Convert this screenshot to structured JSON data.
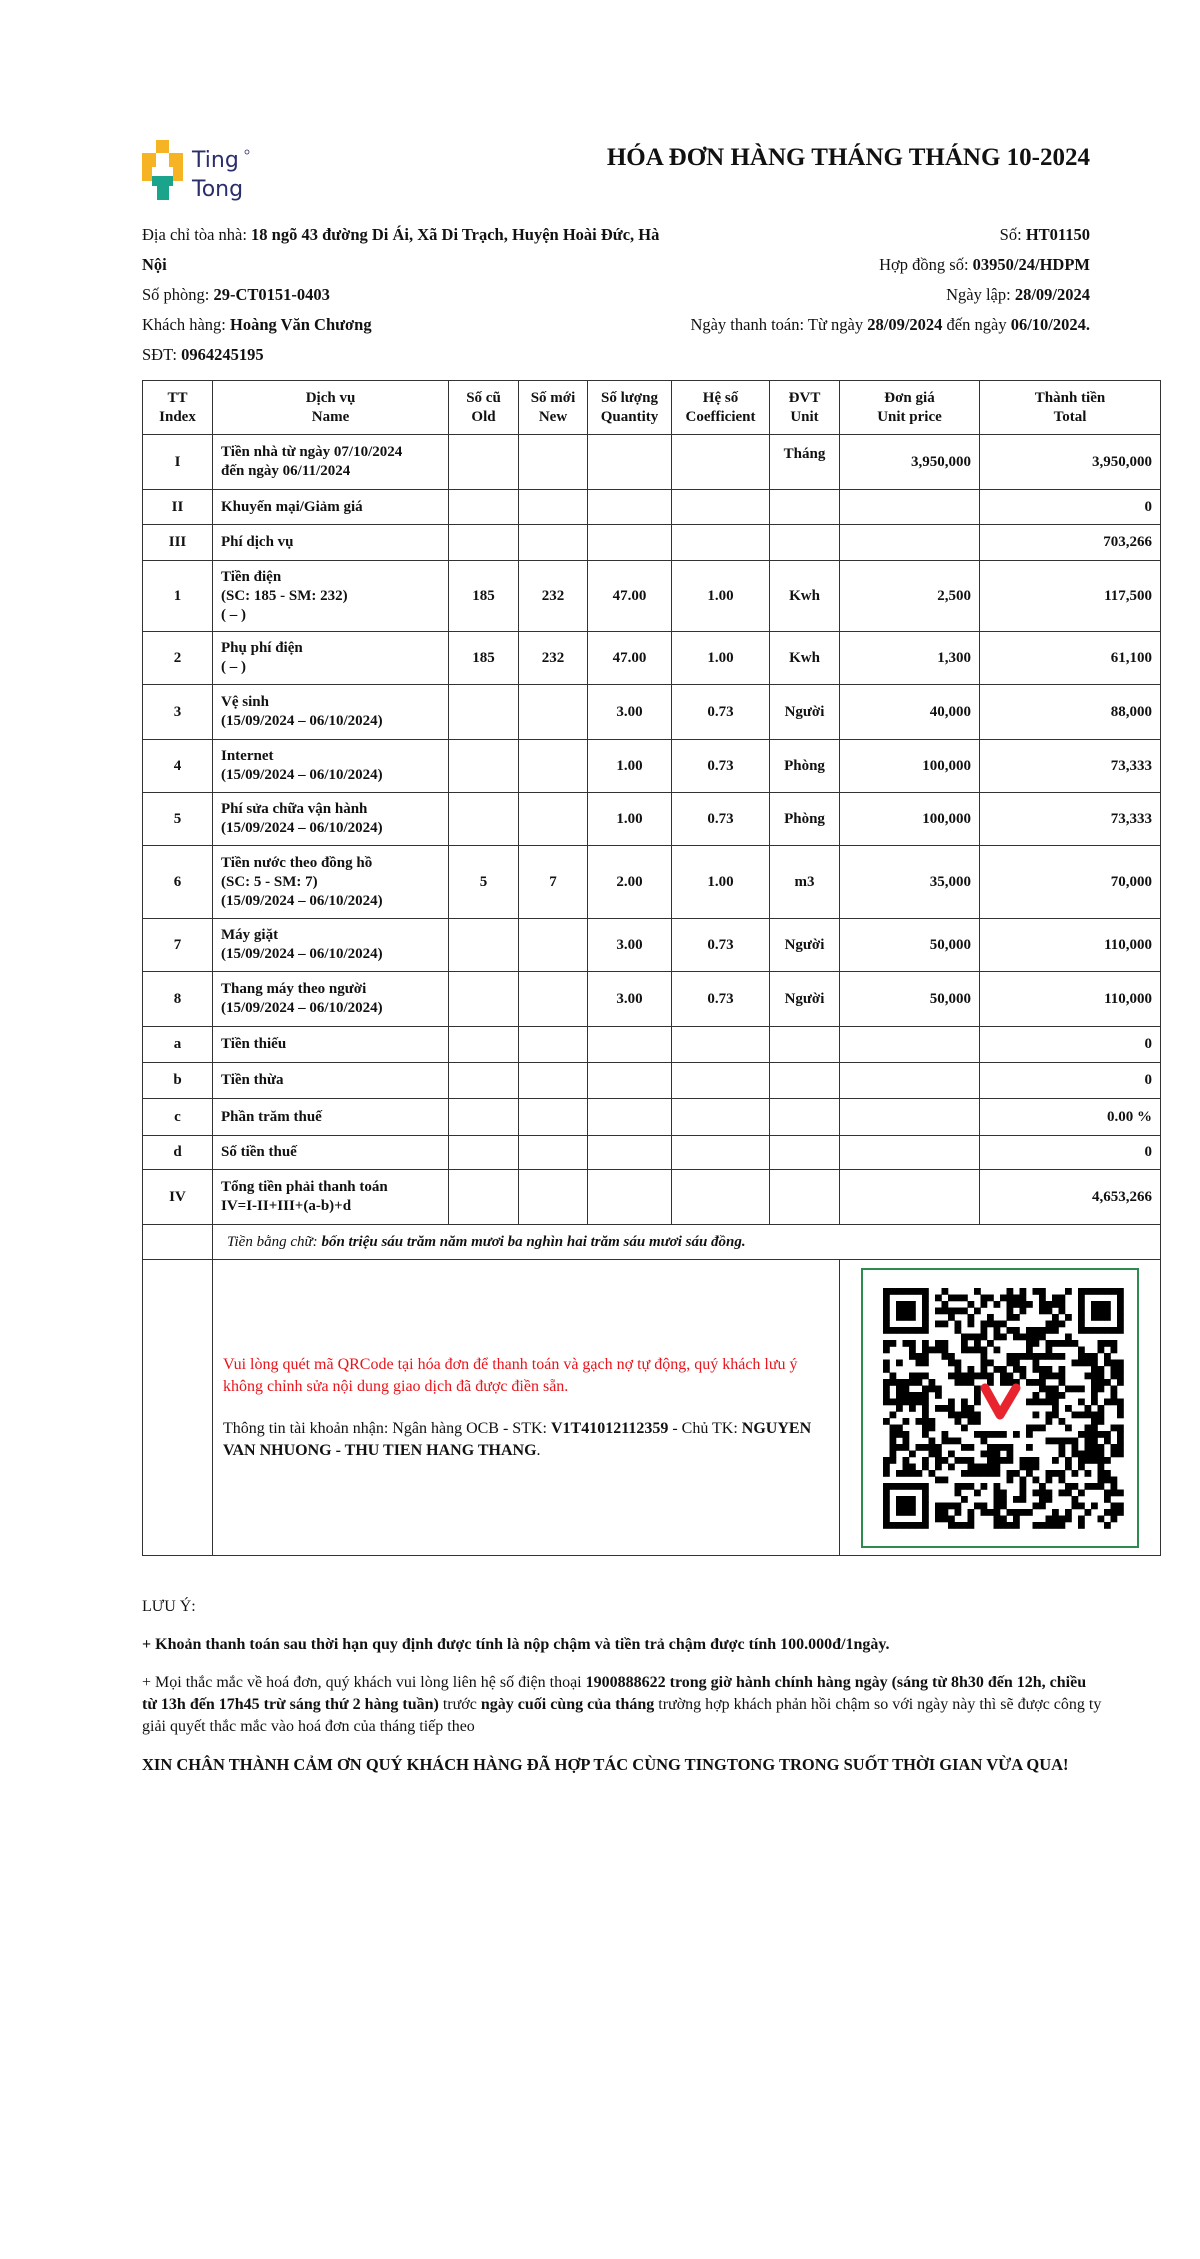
{
  "brand": {
    "name": "Ting Tong",
    "colors": {
      "yellow": "#f6b324",
      "teal": "#1aa48b",
      "navy": "#2b2e6b"
    }
  },
  "title": "HÓA ĐƠN HÀNG THÁNG THÁNG 10-2024",
  "info_left": [
    {
      "label": "Địa chỉ tòa nhà: ",
      "value": "18 ngõ 43 đường Di Ái, Xã Di Trạch, Huyện Hoài Đức, Hà Nội"
    },
    {
      "label": "Số phòng: ",
      "value": "29-CT0151-0403"
    },
    {
      "label": "Khách hàng: ",
      "value": "Hoàng Văn Chương"
    },
    {
      "label": "SĐT: ",
      "value": "0964245195"
    }
  ],
  "info_right": {
    "so_label": "Số: ",
    "so": "HT01150",
    "contract_label": "Hợp đồng số: ",
    "contract": "03950/24/HDPM",
    "date_label": "Ngày lập: ",
    "date": "28/09/2024",
    "pay_label": "Ngày thanh toán: Từ ngày ",
    "pay_from": "28/09/2024",
    "pay_mid": " đến ngày ",
    "pay_to": "06/10/2024."
  },
  "table": {
    "headers": [
      [
        "TT",
        "Index"
      ],
      [
        "Dịch vụ",
        "Name"
      ],
      [
        "Số cũ",
        "Old"
      ],
      [
        "Số mới",
        "New"
      ],
      [
        "Số lượng",
        "Quantity"
      ],
      [
        "Hệ số",
        "Coefficient"
      ],
      [
        "ĐVT",
        "Unit"
      ],
      [
        "Đơn giá",
        "Unit price"
      ],
      [
        "Thành tiền",
        "Total"
      ]
    ],
    "rows": [
      {
        "idx": "I",
        "name": [
          "Tiền nhà từ ngày 07/10/2024",
          "đến ngày 06/11/2024"
        ],
        "old": "",
        "new": "",
        "qty": "",
        "coef": "",
        "unit": "Tháng",
        "price": "3,950,000",
        "total": "3,950,000"
      },
      {
        "idx": "II",
        "name": [
          "Khuyến mại/Giảm giá"
        ],
        "old": "",
        "new": "",
        "qty": "",
        "coef": "",
        "unit": "",
        "price": "",
        "total": "0"
      },
      {
        "idx": "III",
        "name": [
          "Phí dịch vụ"
        ],
        "old": "",
        "new": "",
        "qty": "",
        "coef": "",
        "unit": "",
        "price": "",
        "total": "703,266"
      },
      {
        "idx": "1",
        "name": [
          "Tiền điện",
          "(SC: 185 - SM: 232)",
          "( – )"
        ],
        "old": "185",
        "new": "232",
        "qty": "47.00",
        "coef": "1.00",
        "unit": "Kwh",
        "price": "2,500",
        "total": "117,500"
      },
      {
        "idx": "2",
        "name": [
          "Phụ phí điện",
          "( – )"
        ],
        "old": "185",
        "new": "232",
        "qty": "47.00",
        "coef": "1.00",
        "unit": "Kwh",
        "price": "1,300",
        "total": "61,100"
      },
      {
        "idx": "3",
        "name": [
          "Vệ sinh",
          "(15/09/2024 – 06/10/2024)"
        ],
        "old": "",
        "new": "",
        "qty": "3.00",
        "coef": "0.73",
        "unit": "Người",
        "price": "40,000",
        "total": "88,000"
      },
      {
        "idx": "4",
        "name": [
          "Internet",
          "(15/09/2024 – 06/10/2024)"
        ],
        "old": "",
        "new": "",
        "qty": "1.00",
        "coef": "0.73",
        "unit": "Phòng",
        "price": "100,000",
        "total": "73,333"
      },
      {
        "idx": "5",
        "name": [
          "Phí sửa chữa vận hành",
          "(15/09/2024 – 06/10/2024)"
        ],
        "old": "",
        "new": "",
        "qty": "1.00",
        "coef": "0.73",
        "unit": "Phòng",
        "price": "100,000",
        "total": "73,333"
      },
      {
        "idx": "6",
        "name": [
          "Tiền nước theo đồng hồ",
          "(SC: 5 - SM: 7)",
          "(15/09/2024 – 06/10/2024)"
        ],
        "old": "5",
        "new": "7",
        "qty": "2.00",
        "coef": "1.00",
        "unit": "m3",
        "price": "35,000",
        "total": "70,000"
      },
      {
        "idx": "7",
        "name": [
          "Máy giặt",
          "(15/09/2024 – 06/10/2024)"
        ],
        "old": "",
        "new": "",
        "qty": "3.00",
        "coef": "0.73",
        "unit": "Người",
        "price": "50,000",
        "total": "110,000"
      },
      {
        "idx": "8",
        "name": [
          "Thang máy theo người",
          "(15/09/2024 – 06/10/2024)"
        ],
        "old": "",
        "new": "",
        "qty": "3.00",
        "coef": "0.73",
        "unit": "Người",
        "price": "50,000",
        "total": "110,000"
      },
      {
        "idx": "a",
        "name": [
          "Tiền thiếu"
        ],
        "old": "",
        "new": "",
        "qty": "",
        "coef": "",
        "unit": "",
        "price": "",
        "total": "0"
      },
      {
        "idx": "b",
        "name": [
          "Tiền thừa"
        ],
        "old": "",
        "new": "",
        "qty": "",
        "coef": "",
        "unit": "",
        "price": "",
        "total": "0"
      },
      {
        "idx": "c",
        "name": [
          "Phần trăm thuế"
        ],
        "old": "",
        "new": "",
        "qty": "",
        "coef": "",
        "unit": "",
        "price": "",
        "total": "0.00 %"
      },
      {
        "idx": "d",
        "name": [
          "Số tiền thuế"
        ],
        "old": "",
        "new": "",
        "qty": "",
        "coef": "",
        "unit": "",
        "price": "",
        "total": "0"
      },
      {
        "idx": "IV",
        "name": [
          "Tổng tiền phải thanh toán",
          "IV=I-II+III+(a-b)+d"
        ],
        "old": "",
        "new": "",
        "qty": "",
        "coef": "",
        "unit": "",
        "price": "",
        "total": "4,653,266"
      }
    ],
    "words_label": "Tiền bằng chữ: ",
    "words": "bốn triệu sáu trăm năm mươi ba nghìn hai trăm sáu mươi sáu đồng."
  },
  "payment": {
    "notice": "Vui lòng quét mã QRCode tại hóa đơn để thanh toán và gạch nợ tự động, quý khách lưu ý không chỉnh sửa nội dung giao dịch đã được điền sẵn.",
    "account_label": "Thông tin tài khoản nhận: Ngân hàng OCB - STK: ",
    "account": "V1T41012112359",
    "owner_label": " - Chủ TK: ",
    "owner": "NGUYEN VAN NHUONG - THU TIEN HANG THANG",
    "owner_end": ".",
    "qr_icon": "qr-code",
    "qr_border_color": "#2e8b4e"
  },
  "notes": {
    "heading": "LƯU Ý:",
    "late": "+ Khoản thanh toán sau thời hạn quy định được tính là nộp chậm và tiền trả chậm được tính 100.000đ/1ngày.",
    "contact_1": "+ Mọi thắc mắc về hoá đơn, quý khách vui lòng liên hệ số điện thoại ",
    "contact_2": "1900888622 trong giờ hành chính hàng ngày (sáng từ 8h30 đến 12h, chiều từ 13h đến 17h45 trừ sáng thứ 2 hàng tuần)",
    "contact_3": " trước ",
    "contact_4": "ngày cuối cùng của tháng",
    "contact_5": " trường hợp khách phản hồi chậm so với ngày này thì sẽ được công ty giải quyết thắc mắc vào hoá đơn của tháng tiếp theo",
    "thanks": "XIN CHÂN THÀNH CẢM ƠN QUÝ KHÁCH HÀNG ĐÃ HỢP TÁC CÙNG TINGTONG TRONG SUỐT THỜI GIAN VỪA QUA!"
  }
}
